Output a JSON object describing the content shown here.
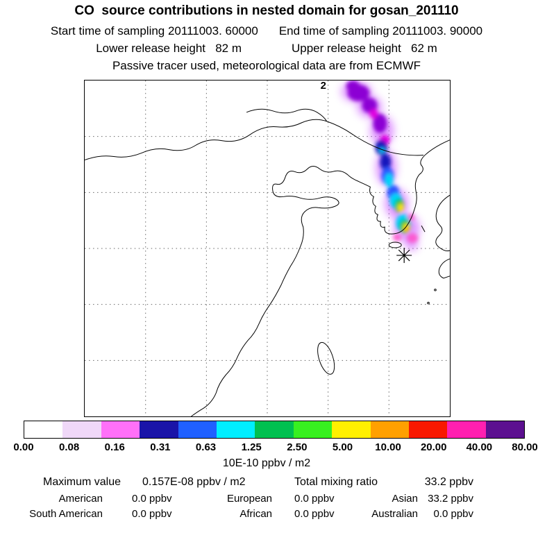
{
  "header": {
    "title": "CO  source contributions in nested domain for gosan_201110",
    "start_time": "Start time of sampling 20111003. 60000",
    "end_time": "End time of sampling 20111003. 90000",
    "lower_release": "Lower release height   82 m",
    "upper_release": "Upper release height   62 m",
    "tracer_info": "Passive tracer used, meteorological data are from ECMWF"
  },
  "map": {
    "annotation": "2",
    "receptor_marker": "asterisk"
  },
  "colorbar": {
    "tick_labels": [
      "0.00",
      "0.08",
      "0.16",
      "0.31",
      "0.63",
      "1.25",
      "2.50",
      "5.00",
      "10.00",
      "20.00",
      "40.00",
      "80.00"
    ],
    "colors": [
      "#ffffff",
      "#f0d8f8",
      "#ff70f8",
      "#1a14a8",
      "#2060ff",
      "#00eeff",
      "#00c050",
      "#38f020",
      "#fff000",
      "#ffa000",
      "#f81800",
      "#ff20b0",
      "#5c1090"
    ],
    "units": "10E-10 ppbv / m2"
  },
  "stats": {
    "max_label": "Maximum value",
    "max_value": "0.157E-08 ppbv / m2",
    "total_label": "Total mixing ratio",
    "total_value": "33.2 ppbv",
    "rows": [
      [
        {
          "label": "American",
          "value": "0.0 ppbv"
        },
        {
          "label": "European",
          "value": "0.0 ppbv"
        },
        {
          "label": "Asian",
          "value": "33.2 ppbv"
        }
      ],
      [
        {
          "label": "South American",
          "value": "0.0 ppbv"
        },
        {
          "label": "African",
          "value": "0.0 ppbv"
        },
        {
          "label": "Australian",
          "value": "0.0 ppbv"
        }
      ]
    ]
  },
  "chart_data": {
    "type": "heatmap",
    "title": "CO source contributions in nested domain for gosan_201110",
    "colorbar_levels": [
      0.0,
      0.08,
      0.16,
      0.31,
      0.63,
      1.25,
      2.5,
      5.0,
      10.0,
      20.0,
      40.0,
      80.0
    ],
    "colorbar_units": "10E-10 ppbv / m2",
    "colorbar_colors": [
      "#ffffff",
      "#f0d8f8",
      "#ff70f8",
      "#1a14a8",
      "#2060ff",
      "#00eeff",
      "#00c050",
      "#38f020",
      "#fff000",
      "#ffa000",
      "#f81800",
      "#ff20b0",
      "#5c1090"
    ],
    "maximum_value": "0.157E-08 ppbv / m2",
    "total_mixing_ratio": "33.2 ppbv",
    "contributions_ppbv": {
      "American": 0.0,
      "European": 0.0,
      "Asian": 33.2,
      "South American": 0.0,
      "African": 0.0,
      "Australian": 0.0
    }
  }
}
